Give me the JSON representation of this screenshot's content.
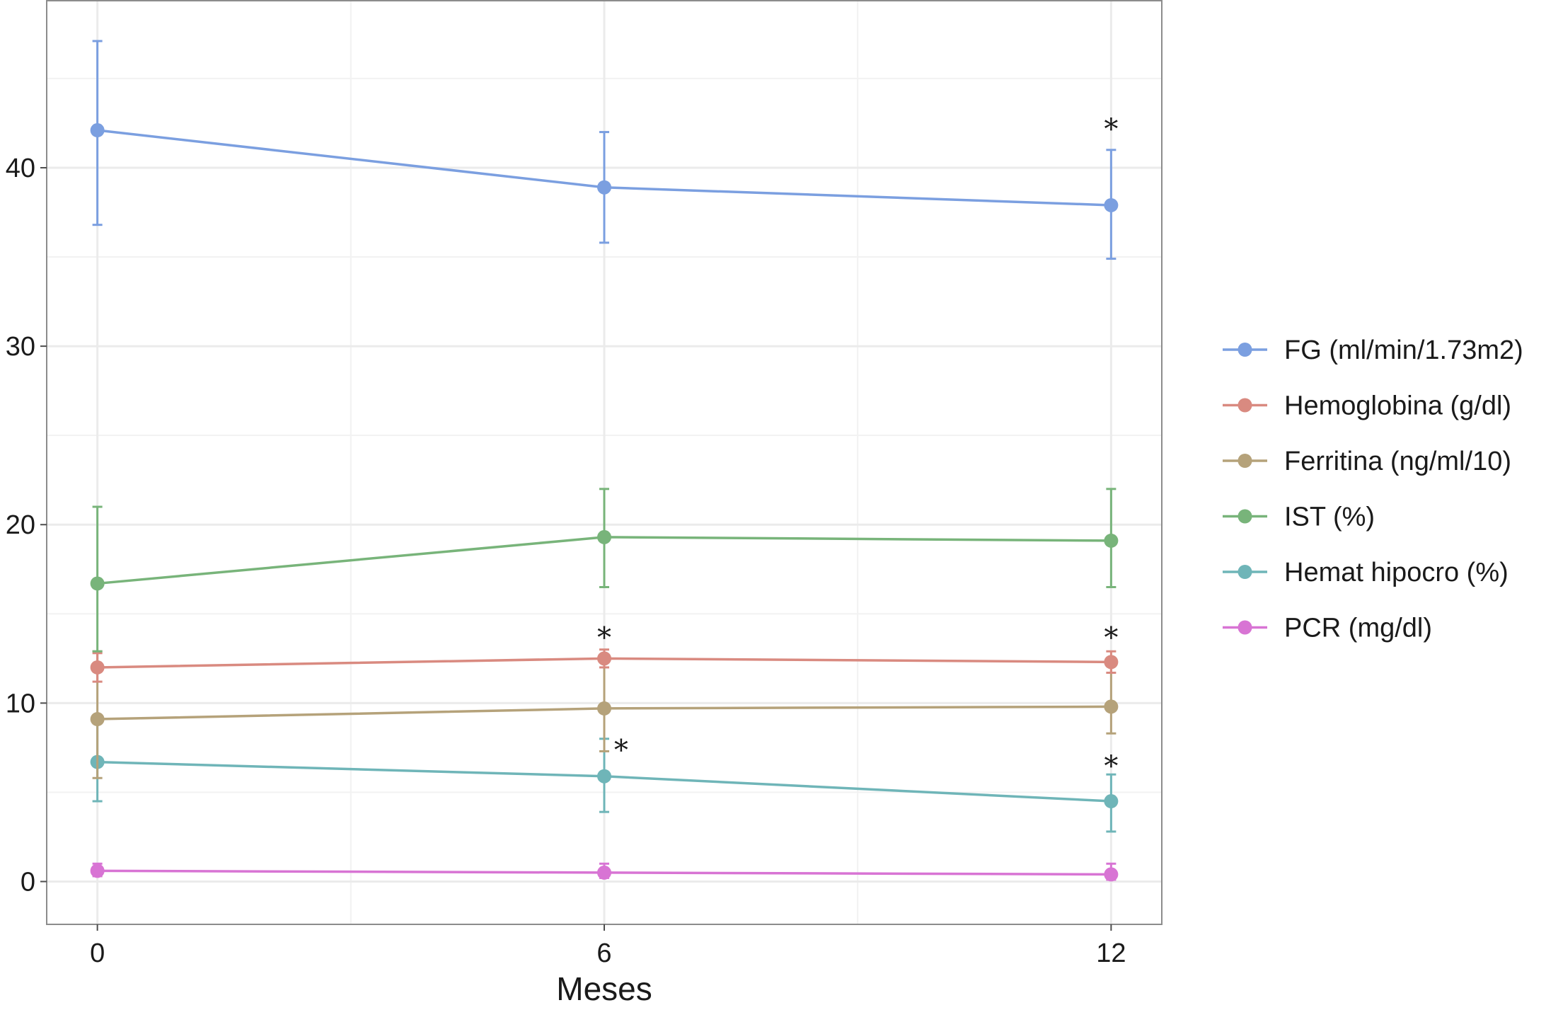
{
  "chart_data": {
    "type": "line",
    "xlabel": "Meses",
    "ylabel": "",
    "x": [
      0,
      6,
      12
    ],
    "xticks": [
      0,
      6,
      12
    ],
    "xlim": [
      -0.6,
      12.6
    ],
    "yticks": [
      0,
      10,
      20,
      30,
      40
    ],
    "ylim": [
      -2.4,
      49.4
    ],
    "grid": true,
    "legend_position": "right",
    "series": [
      {
        "name": "FG (ml/min/1.73m2)",
        "color": "#7B9FE0",
        "values": [
          42.1,
          38.9,
          37.9
        ],
        "lower": [
          36.8,
          35.8,
          34.9
        ],
        "upper": [
          47.1,
          42.0,
          41.0
        ]
      },
      {
        "name": "Hemoglobina (g/dl)",
        "color": "#D98A80",
        "values": [
          12.0,
          12.5,
          12.3
        ],
        "lower": [
          11.2,
          12.0,
          11.7
        ],
        "upper": [
          12.8,
          13.0,
          12.9
        ]
      },
      {
        "name": "Ferritina (ng/ml/10)",
        "color": "#B5A27A",
        "values": [
          9.1,
          9.7,
          9.8
        ],
        "lower": [
          5.8,
          7.3,
          8.3
        ],
        "upper": [
          12.9,
          12.5,
          12.5
        ]
      },
      {
        "name": "IST (%)",
        "color": "#78B47A",
        "values": [
          16.7,
          19.3,
          19.1
        ],
        "lower": [
          12.9,
          16.5,
          16.5
        ],
        "upper": [
          21.0,
          22.0,
          22.0
        ]
      },
      {
        "name": "Hemat hipocro (%)",
        "color": "#6FB5B8",
        "values": [
          6.7,
          5.9,
          4.5
        ],
        "lower": [
          4.5,
          3.9,
          2.8
        ],
        "upper": [
          9.0,
          8.0,
          6.0
        ]
      },
      {
        "name": "PCR (mg/dl)",
        "color": "#D874D4",
        "values": [
          0.6,
          0.5,
          0.4
        ],
        "lower": [
          0.3,
          0.2,
          0.1
        ],
        "upper": [
          1.0,
          1.0,
          1.0
        ]
      }
    ],
    "annotations": [
      {
        "text": "*",
        "x": 12,
        "y": 42.5
      },
      {
        "text": "*",
        "x": 6,
        "y": 14.0
      },
      {
        "text": "*",
        "x": 12,
        "y": 14.0
      },
      {
        "text": "*",
        "x": 6.2,
        "y": 7.7
      },
      {
        "text": "*",
        "x": 12,
        "y": 6.8
      }
    ]
  }
}
